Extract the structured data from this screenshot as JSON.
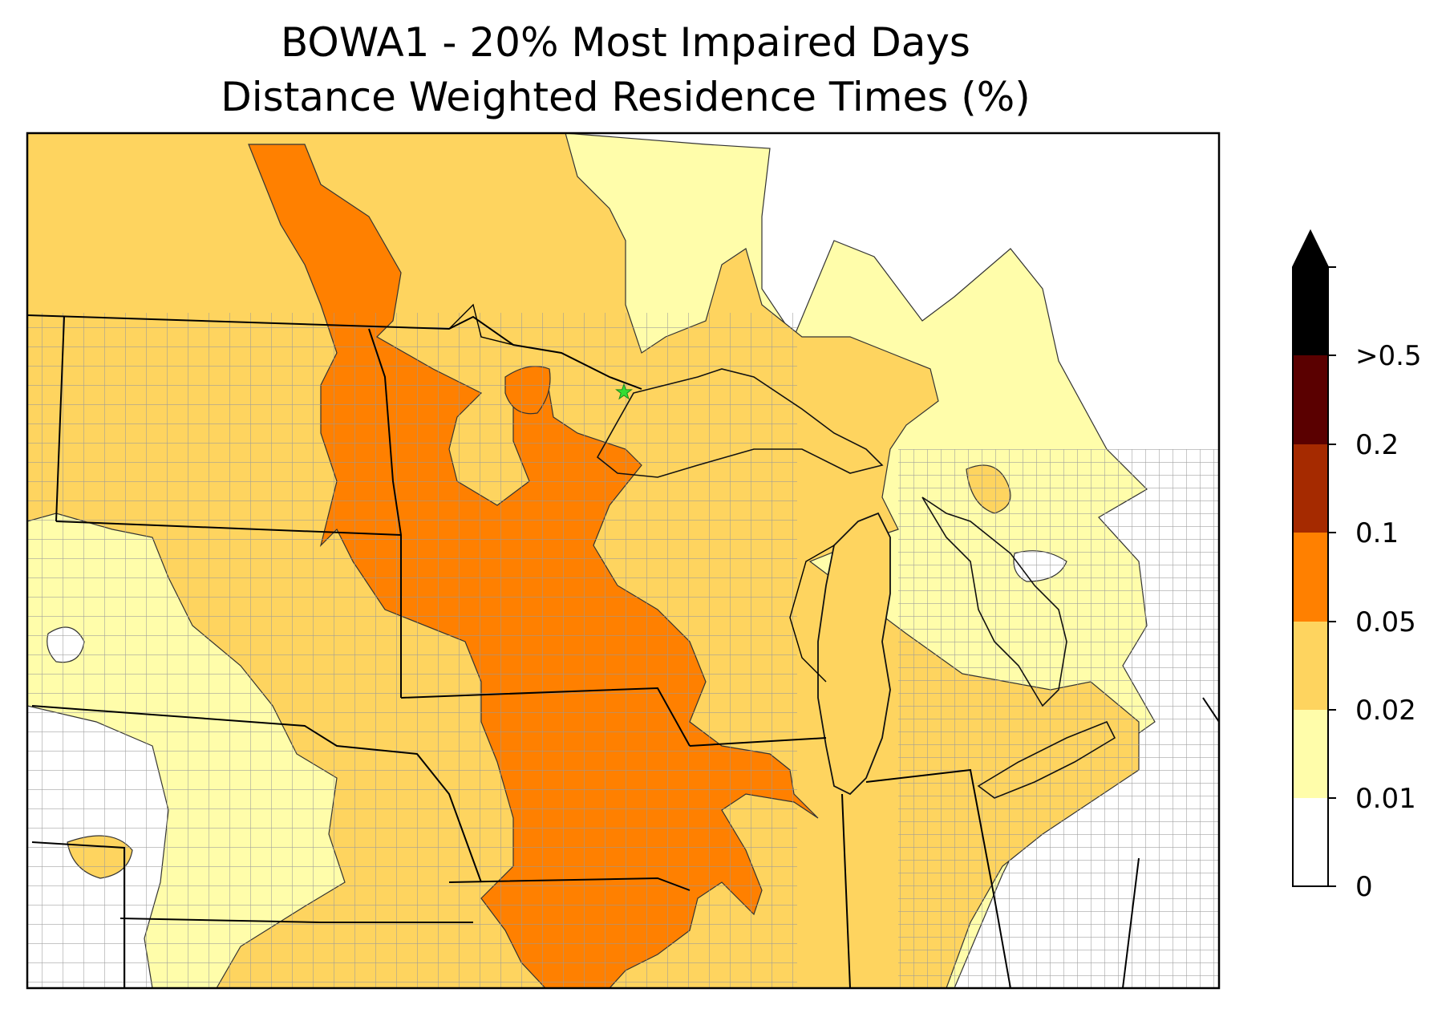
{
  "title": {
    "line1": "BOWA1 - 20% Most Impaired Days",
    "line2": "Distance Weighted Residence Times (%)"
  },
  "map": {
    "site_marker": {
      "symbol": "star",
      "color": "#33dd33"
    },
    "fill_classes": [
      {
        "range": "0-0.01",
        "color": "#ffffff"
      },
      {
        "range": "0.01-0.02",
        "color": "#fffdaa"
      },
      {
        "range": "0.02-0.05",
        "color": "#fed45f"
      },
      {
        "range": "0.05-0.1",
        "color": "#ff8000"
      },
      {
        "range": "0.1-0.2",
        "color": "#a52a00"
      },
      {
        "range": "0.2-0.5",
        "color": "#5a0000"
      },
      {
        "range": ">0.5",
        "color": "#000000"
      }
    ],
    "boundary_colors": {
      "state": "#000000",
      "county": "#999999"
    }
  },
  "colorbar": {
    "extend": "max",
    "tick_labels": [
      "0",
      "0.01",
      "0.02",
      "0.05",
      "0.1",
      "0.2",
      ">0.5"
    ],
    "colors": [
      "#ffffff",
      "#fffdaa",
      "#fed45f",
      "#ff8000",
      "#a52a00",
      "#5a0000",
      "#000000"
    ]
  }
}
